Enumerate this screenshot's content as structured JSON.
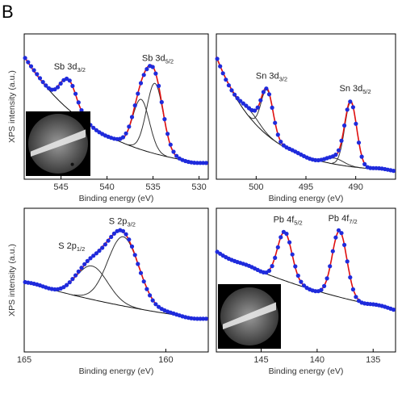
{
  "panel_letter": "B",
  "y_axis_label": "XPS intensity (a.u.)",
  "colors": {
    "points": "#1f2bdc",
    "fit": "#e01010",
    "components": "#333333"
  },
  "chart_data": [
    {
      "type": "scatter",
      "xlabel": "Binding energy (eV)",
      "ylabel": "XPS intensity (a.u.)",
      "xlim": [
        549,
        529
      ],
      "xticks": [
        545,
        540,
        535,
        530
      ],
      "inset_image": true,
      "peaks": [
        {
          "label_main": "Sb 3d",
          "label_sub": "3/2",
          "x": 544.2,
          "height": 0.24,
          "sigma": 0.9
        },
        {
          "label_main": "Sb 3d",
          "label_sub": "5/2",
          "x": 534.8,
          "height": 0.56,
          "sigma": 0.9
        },
        {
          "x": 536.3,
          "height": 0.4,
          "sigma": 0.9
        }
      ],
      "background": {
        "start": 0.95,
        "end": 0.02,
        "decay": 0.4
      }
    },
    {
      "type": "scatter",
      "xlabel": "Binding energy (eV)",
      "ylabel": "",
      "xlim": [
        504,
        486
      ],
      "xticks": [
        500,
        495,
        490
      ],
      "inset_image": false,
      "peaks": [
        {
          "x": 500.5,
          "height": 0.06,
          "sigma": 0.9
        },
        {
          "label_main": "Sn 3d",
          "label_sub": "3/2",
          "x": 498.9,
          "height": 0.38,
          "sigma": 0.6
        },
        {
          "x": 492.1,
          "height": 0.05,
          "sigma": 0.9
        },
        {
          "label_main": "Sn 3d",
          "label_sub": "5/2",
          "x": 490.5,
          "height": 0.54,
          "sigma": 0.6
        }
      ],
      "background": {
        "start": 1.0,
        "end": 0.03,
        "decay": 0.25
      }
    },
    {
      "type": "scatter",
      "xlabel": "Binding energy (eV)",
      "ylabel": "XPS intensity (a.u.)",
      "xlim": [
        165,
        158.5
      ],
      "xticks": [
        165,
        160
      ],
      "inset_image": false,
      "peaks": [
        {
          "label_main": "S 2p",
          "label_sub": "1/2",
          "x": 162.6,
          "height": 0.3,
          "sigma": 0.55
        },
        {
          "label_main": "S 2p",
          "label_sub": "3/2",
          "x": 161.5,
          "height": 0.62,
          "sigma": 0.55
        }
      ],
      "background": {
        "start": 0.6,
        "end": 0.0,
        "decay": 1.2
      }
    },
    {
      "type": "scatter",
      "xlabel": "Binding energy (eV)",
      "ylabel": "",
      "xlim": [
        149,
        133
      ],
      "xticks": [
        145,
        140,
        135
      ],
      "inset_image": true,
      "peaks": [
        {
          "label_main": "Pb 4f",
          "label_sub": "5/2",
          "x": 142.9,
          "height": 0.44,
          "sigma": 0.65
        },
        {
          "label_main": "Pb 4f",
          "label_sub": "7/2",
          "x": 138.0,
          "height": 0.6,
          "sigma": 0.65
        }
      ],
      "background": {
        "start": 0.88,
        "end": 0.05,
        "decay": 1.0
      }
    }
  ]
}
